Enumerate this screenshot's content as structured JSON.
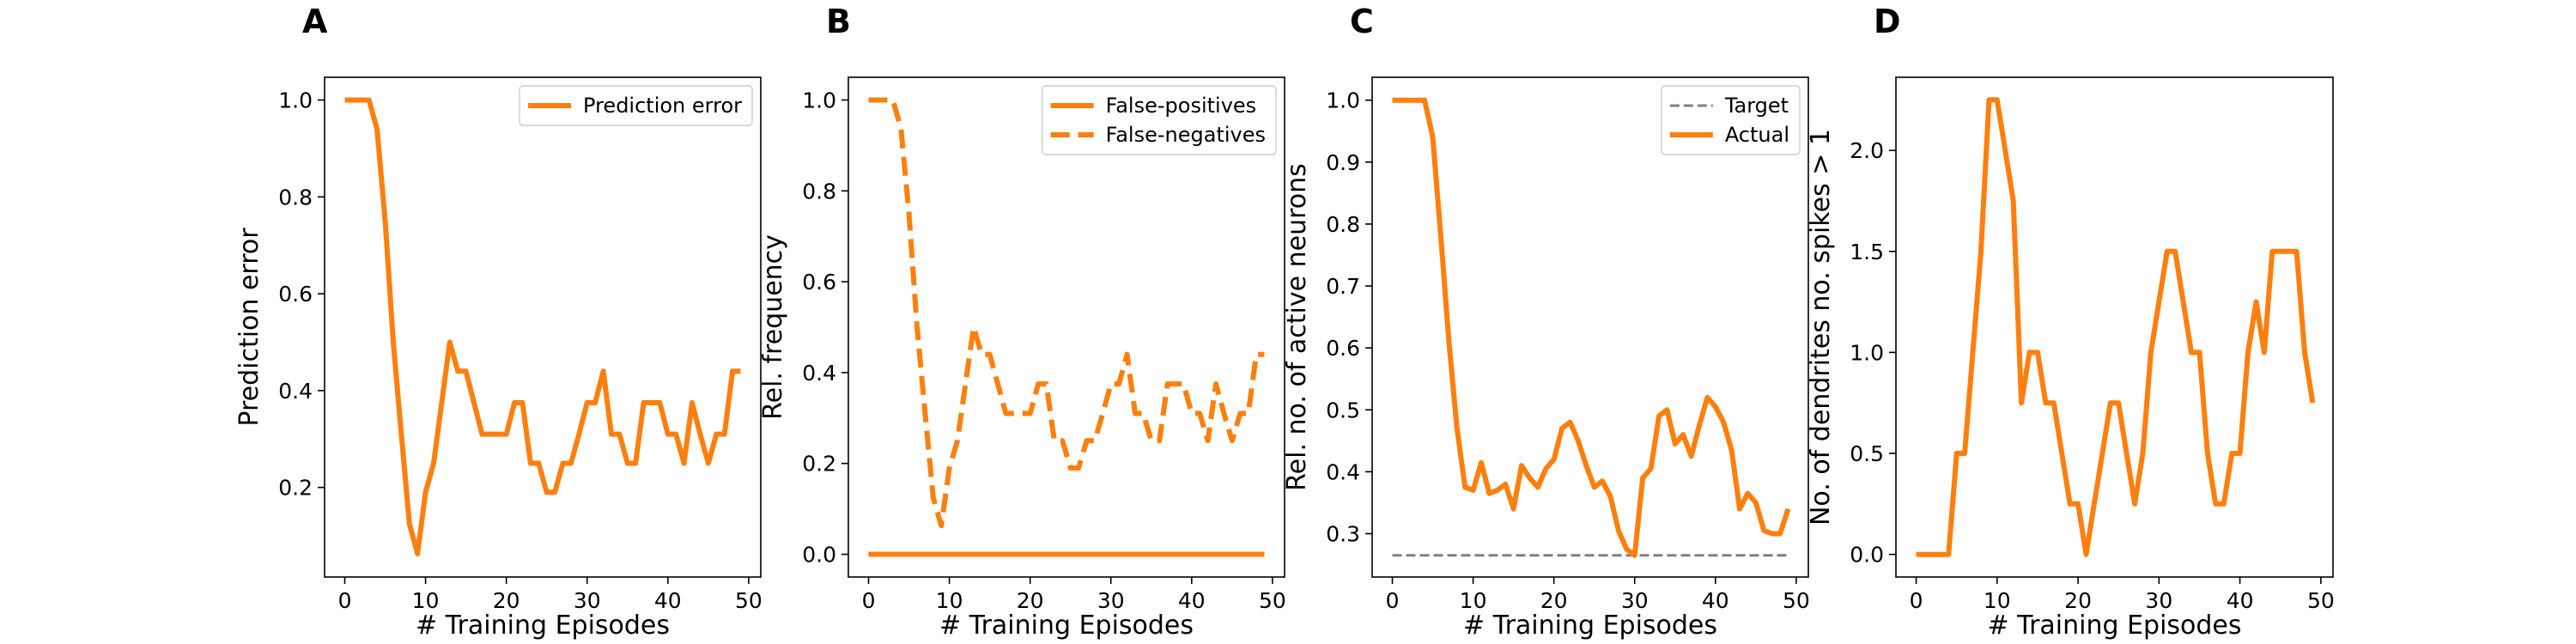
{
  "chart_data": [
    {
      "panel": "A",
      "type": "line",
      "xlabel": "# Training Episodes",
      "ylabel": "Prediction error",
      "xlim": [
        -2.5,
        51.5
      ],
      "ylim": [
        0.015,
        1.047
      ],
      "xticks": [
        0,
        10,
        20,
        30,
        40,
        50
      ],
      "yticks": [
        0.2,
        0.4,
        0.6,
        0.8,
        1.0
      ],
      "ytick_labels": [
        "0.2",
        "0.4",
        "0.6",
        "0.8",
        "1.0"
      ],
      "legend_position": "top-right",
      "grid": false,
      "x": [
        0,
        1,
        2,
        3,
        4,
        5,
        6,
        7,
        8,
        9,
        10,
        11,
        12,
        13,
        14,
        15,
        16,
        17,
        18,
        19,
        20,
        21,
        22,
        23,
        24,
        25,
        26,
        27,
        28,
        29,
        30,
        31,
        32,
        33,
        34,
        35,
        36,
        37,
        38,
        39,
        40,
        41,
        42,
        43,
        44,
        45,
        46,
        47,
        48,
        49
      ],
      "series": [
        {
          "name": "Prediction error",
          "style": "solid",
          "color": "#ff7f0e",
          "values": [
            1.0,
            1.0,
            1.0,
            1.0,
            0.94,
            0.75,
            0.5,
            0.31,
            0.125,
            0.063,
            0.19,
            0.25,
            0.375,
            0.5,
            0.44,
            0.44,
            0.375,
            0.31,
            0.31,
            0.31,
            0.31,
            0.375,
            0.375,
            0.25,
            0.25,
            0.19,
            0.19,
            0.25,
            0.25,
            0.31,
            0.375,
            0.375,
            0.44,
            0.31,
            0.31,
            0.25,
            0.25,
            0.375,
            0.375,
            0.375,
            0.31,
            0.31,
            0.25,
            0.375,
            0.31,
            0.25,
            0.31,
            0.31,
            0.44,
            0.44
          ]
        }
      ]
    },
    {
      "panel": "B",
      "type": "line",
      "xlabel": "# Training Episodes",
      "ylabel": "Rel. frequency",
      "xlim": [
        -2.5,
        51.5
      ],
      "ylim": [
        -0.05,
        1.05
      ],
      "xticks": [
        0,
        10,
        20,
        30,
        40,
        50
      ],
      "yticks": [
        0.0,
        0.2,
        0.4,
        0.6,
        0.8,
        1.0
      ],
      "ytick_labels": [
        "0.0",
        "0.2",
        "0.4",
        "0.6",
        "0.8",
        "1.0"
      ],
      "legend_position": "top-right",
      "grid": false,
      "x": [
        0,
        1,
        2,
        3,
        4,
        5,
        6,
        7,
        8,
        9,
        10,
        11,
        12,
        13,
        14,
        15,
        16,
        17,
        18,
        19,
        20,
        21,
        22,
        23,
        24,
        25,
        26,
        27,
        28,
        29,
        30,
        31,
        32,
        33,
        34,
        35,
        36,
        37,
        38,
        39,
        40,
        41,
        42,
        43,
        44,
        45,
        46,
        47,
        48,
        49
      ],
      "series": [
        {
          "name": "False-positives",
          "style": "solid",
          "color": "#ff7f0e",
          "values": [
            0,
            0,
            0,
            0,
            0,
            0,
            0,
            0,
            0,
            0,
            0,
            0,
            0,
            0,
            0,
            0,
            0,
            0,
            0,
            0,
            0,
            0,
            0,
            0,
            0,
            0,
            0,
            0,
            0,
            0,
            0,
            0,
            0,
            0,
            0,
            0,
            0,
            0,
            0,
            0,
            0,
            0,
            0,
            0,
            0,
            0,
            0,
            0,
            0,
            0
          ]
        },
        {
          "name": "False-negatives",
          "style": "dashed",
          "color": "#ff7f0e",
          "values": [
            1.0,
            1.0,
            1.0,
            1.0,
            0.94,
            0.75,
            0.5,
            0.31,
            0.125,
            0.063,
            0.19,
            0.25,
            0.375,
            0.5,
            0.44,
            0.44,
            0.375,
            0.31,
            0.31,
            0.31,
            0.31,
            0.375,
            0.375,
            0.25,
            0.25,
            0.19,
            0.19,
            0.25,
            0.25,
            0.31,
            0.375,
            0.375,
            0.44,
            0.31,
            0.31,
            0.25,
            0.25,
            0.375,
            0.375,
            0.375,
            0.31,
            0.31,
            0.25,
            0.375,
            0.31,
            0.25,
            0.31,
            0.31,
            0.44,
            0.44
          ]
        }
      ]
    },
    {
      "panel": "C",
      "type": "line",
      "xlabel": "# Training Episodes",
      "ylabel": "Rel. no. of active neurons",
      "xlim": [
        -2.5,
        51.5
      ],
      "ylim": [
        0.23,
        1.037
      ],
      "xticks": [
        0,
        10,
        20,
        30,
        40,
        50
      ],
      "yticks": [
        0.3,
        0.4,
        0.5,
        0.6,
        0.7,
        0.8,
        0.9,
        1.0
      ],
      "ytick_labels": [
        "0.3",
        "0.4",
        "0.5",
        "0.6",
        "0.7",
        "0.8",
        "0.9",
        "1.0"
      ],
      "legend_position": "top-right",
      "grid": false,
      "x": [
        0,
        1,
        2,
        3,
        4,
        5,
        6,
        7,
        8,
        9,
        10,
        11,
        12,
        13,
        14,
        15,
        16,
        17,
        18,
        19,
        20,
        21,
        22,
        23,
        24,
        25,
        26,
        27,
        28,
        29,
        30,
        31,
        32,
        33,
        34,
        35,
        36,
        37,
        38,
        39,
        40,
        41,
        42,
        43,
        44,
        45,
        46,
        47,
        48,
        49
      ],
      "series": [
        {
          "name": "Target",
          "style": "dashed",
          "color": "#808080",
          "values": [
            0.265,
            0.265,
            0.265,
            0.265,
            0.265,
            0.265,
            0.265,
            0.265,
            0.265,
            0.265,
            0.265,
            0.265,
            0.265,
            0.265,
            0.265,
            0.265,
            0.265,
            0.265,
            0.265,
            0.265,
            0.265,
            0.265,
            0.265,
            0.265,
            0.265,
            0.265,
            0.265,
            0.265,
            0.265,
            0.265,
            0.265,
            0.265,
            0.265,
            0.265,
            0.265,
            0.265,
            0.265,
            0.265,
            0.265,
            0.265,
            0.265,
            0.265,
            0.265,
            0.265,
            0.265,
            0.265,
            0.265,
            0.265,
            0.265,
            0.265
          ]
        },
        {
          "name": "Actual",
          "style": "solid",
          "color": "#ff7f0e",
          "values": [
            1.0,
            1.0,
            1.0,
            1.0,
            1.0,
            0.94,
            0.78,
            0.61,
            0.47,
            0.375,
            0.37,
            0.415,
            0.365,
            0.37,
            0.38,
            0.34,
            0.41,
            0.39,
            0.375,
            0.405,
            0.42,
            0.47,
            0.48,
            0.45,
            0.41,
            0.375,
            0.385,
            0.36,
            0.305,
            0.275,
            0.265,
            0.39,
            0.405,
            0.49,
            0.5,
            0.445,
            0.46,
            0.425,
            0.475,
            0.52,
            0.505,
            0.48,
            0.435,
            0.34,
            0.365,
            0.35,
            0.305,
            0.3,
            0.3,
            0.34
          ]
        }
      ]
    },
    {
      "panel": "D",
      "type": "line",
      "xlabel": "# Training Episodes",
      "ylabel": "No. of dendrites no. spikes > 1",
      "xlim": [
        -2.5,
        51.5
      ],
      "ylim": [
        -0.112,
        2.362
      ],
      "xticks": [
        0,
        10,
        20,
        30,
        40,
        50
      ],
      "yticks": [
        0.0,
        0.5,
        1.0,
        1.5,
        2.0
      ],
      "ytick_labels": [
        "0.0",
        "0.5",
        "1.0",
        "1.5",
        "2.0"
      ],
      "legend_position": "none",
      "grid": false,
      "x": [
        0,
        1,
        2,
        3,
        4,
        5,
        6,
        7,
        8,
        9,
        10,
        11,
        12,
        13,
        14,
        15,
        16,
        17,
        18,
        19,
        20,
        21,
        22,
        23,
        24,
        25,
        26,
        27,
        28,
        29,
        30,
        31,
        32,
        33,
        34,
        35,
        36,
        37,
        38,
        39,
        40,
        41,
        42,
        43,
        44,
        45,
        46,
        47,
        48,
        49
      ],
      "series": [
        {
          "name": "",
          "style": "solid",
          "color": "#ff7f0e",
          "values": [
            0,
            0,
            0,
            0,
            0,
            0.5,
            0.5,
            1.0,
            1.5,
            2.25,
            2.25,
            2.0,
            1.75,
            0.75,
            1.0,
            1.0,
            0.75,
            0.75,
            0.5,
            0.25,
            0.25,
            0,
            0.25,
            0.5,
            0.75,
            0.75,
            0.5,
            0.25,
            0.5,
            1.0,
            1.25,
            1.5,
            1.5,
            1.25,
            1.0,
            1.0,
            0.5,
            0.25,
            0.25,
            0.5,
            0.5,
            1.0,
            1.25,
            1.0,
            1.5,
            1.5,
            1.5,
            1.5,
            1.0,
            0.75
          ]
        }
      ]
    }
  ]
}
